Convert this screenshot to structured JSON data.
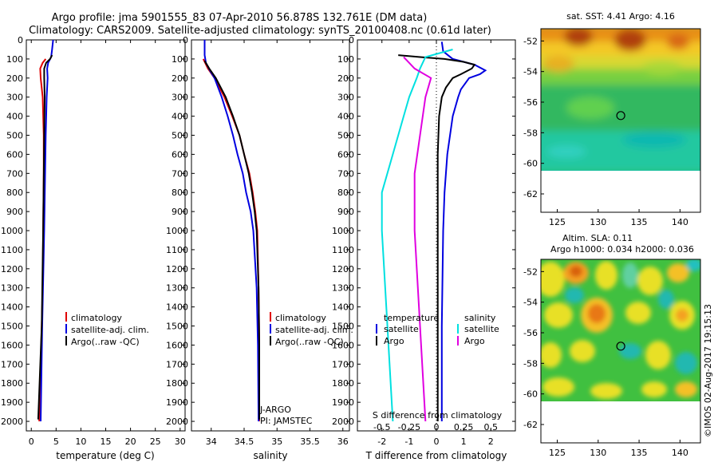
{
  "header": {
    "line1": "Argo profile: jma 5901555_83 07-Apr-2010 56.878S 132.761E (DM data)",
    "line2": "Climatology: CARS2009. Satellite-adjusted climatology: synTS_20100408.nc (0.61d later)"
  },
  "colors": {
    "climatology": "#e00000",
    "satellite": "#0000e0",
    "argo": "#000000",
    "salinity_sat": "#00e0e0",
    "salinity_argo": "#e000e0"
  },
  "chart_data": [
    {
      "type": "line",
      "id": "temperature",
      "title": "",
      "xlabel": "temperature (deg C)",
      "ylabel": "",
      "xlim": [
        -1,
        31
      ],
      "ylim": [
        2050,
        0
      ],
      "xticks": [
        0,
        5,
        10,
        15,
        20,
        25,
        30
      ],
      "yticks": [
        0,
        100,
        200,
        300,
        400,
        500,
        600,
        700,
        800,
        900,
        1000,
        1100,
        1200,
        1300,
        1400,
        1500,
        1600,
        1700,
        1800,
        1900,
        2000
      ],
      "legend": [
        "climatology",
        "satellite-adj. clim.",
        "Argo(..raw -QC)"
      ],
      "series": [
        {
          "name": "climatology",
          "depth": [
            100,
            120,
            150,
            200,
            300,
            500,
            700,
            1000,
            1300,
            1600,
            1900,
            2000
          ],
          "values": [
            2.9,
            2.3,
            1.8,
            1.9,
            2.3,
            2.5,
            2.5,
            2.4,
            2.3,
            2.0,
            1.7,
            1.6
          ]
        },
        {
          "name": "satellite-adj. clim.",
          "depth": [
            0,
            50,
            90,
            120,
            150,
            200,
            300,
            500,
            1000,
            1500,
            2000
          ],
          "values": [
            4.4,
            4.2,
            4.0,
            3.4,
            3.2,
            3.3,
            3.1,
            2.9,
            2.6,
            2.2,
            1.9
          ]
        },
        {
          "name": "Argo(..raw -QC)",
          "depth": [
            80,
            100,
            120,
            150,
            200,
            300,
            500,
            1000,
            1500,
            1990
          ],
          "values": [
            4.2,
            3.8,
            3.0,
            2.6,
            2.6,
            2.7,
            2.6,
            2.4,
            2.1,
            1.4
          ]
        }
      ]
    },
    {
      "type": "line",
      "id": "salinity",
      "title": "",
      "xlabel": "salinity",
      "ylabel": "",
      "xlim": [
        33.7,
        36.1
      ],
      "ylim": [
        2050,
        0
      ],
      "xticks": [
        34,
        34.5,
        35,
        35.5,
        36
      ],
      "yticks": [
        0,
        100,
        200,
        300,
        400,
        500,
        600,
        700,
        800,
        900,
        1000,
        1100,
        1200,
        1300,
        1400,
        1500,
        1600,
        1700,
        1800,
        1900,
        2000
      ],
      "legend": [
        "climatology",
        "satellite-adj. clim.",
        "Argo(..raw -QC)"
      ],
      "annotation": [
        "J-ARGO",
        "PI: JAMSTEC"
      ],
      "series": [
        {
          "name": "climatology",
          "depth": [
            100,
            150,
            200,
            300,
            400,
            500,
            600,
            700,
            800,
            900,
            1000,
            1300,
            1600,
            2000
          ],
          "values": [
            33.88,
            33.95,
            34.05,
            34.2,
            34.32,
            34.43,
            34.5,
            34.58,
            34.63,
            34.67,
            34.7,
            34.72,
            34.73,
            34.73
          ]
        },
        {
          "name": "satellite-adj. clim.",
          "depth": [
            0,
            80,
            120,
            160,
            200,
            300,
            400,
            500,
            600,
            700,
            800,
            900,
            1000,
            1300,
            1600,
            2000
          ],
          "values": [
            33.9,
            33.9,
            33.92,
            33.98,
            34.05,
            34.16,
            34.25,
            34.33,
            34.4,
            34.48,
            34.53,
            34.6,
            34.64,
            34.69,
            34.71,
            34.72
          ]
        },
        {
          "name": "Argo(..raw -QC)",
          "depth": [
            110,
            150,
            200,
            300,
            400,
            500,
            600,
            700,
            800,
            900,
            1000,
            1300,
            1600,
            1990
          ],
          "values": [
            33.9,
            33.97,
            34.07,
            34.22,
            34.33,
            34.43,
            34.5,
            34.57,
            34.62,
            34.66,
            34.69,
            34.72,
            34.73,
            34.73
          ]
        }
      ]
    },
    {
      "type": "line",
      "id": "difference",
      "title": "",
      "xlabel": "T difference from climatology",
      "xlabel_top": "S difference from climatology",
      "xlim": [
        -2.9,
        2.9
      ],
      "ylim": [
        2050,
        0
      ],
      "xticks_T": [
        -2,
        -1,
        0,
        1,
        2
      ],
      "xticks_S": [
        -0.5,
        -0.25,
        0,
        0.25,
        0.5
      ],
      "yticks": [
        0,
        100,
        200,
        300,
        400,
        500,
        600,
        700,
        800,
        900,
        1000,
        1100,
        1200,
        1300,
        1400,
        1500,
        1600,
        1700,
        1800,
        1900,
        2000
      ],
      "legend": {
        "temperature": [
          "satellite",
          "Argo"
        ],
        "salinity": [
          "satellite",
          "Argo"
        ],
        "headers": [
          "temperature",
          "salinity"
        ]
      },
      "series": [
        {
          "name": "temperature satellite",
          "depth": [
            10,
            60,
            100,
            130,
            160,
            180,
            200,
            260,
            300,
            400,
            500,
            600,
            800,
            1000,
            1500,
            2000
          ],
          "values": [
            0.2,
            0.25,
            0.6,
            1.4,
            1.8,
            1.6,
            1.2,
            0.9,
            0.8,
            0.6,
            0.5,
            0.4,
            0.3,
            0.25,
            0.2,
            0.2
          ]
        },
        {
          "name": "temperature Argo",
          "depth": [
            80,
            90,
            100,
            115,
            130,
            150,
            180,
            200,
            250,
            300,
            400,
            600,
            1000,
            1500,
            2000
          ],
          "values": [
            -1.4,
            -0.6,
            0.3,
            1.0,
            1.4,
            1.3,
            0.9,
            0.6,
            0.35,
            0.2,
            0.1,
            0.05,
            0.05,
            0.05,
            0.05
          ]
        },
        {
          "name": "salinity satellite",
          "depth": [
            50,
            90,
            150,
            200,
            300,
            400,
            600,
            800,
            1000,
            1500,
            2000
          ],
          "values": [
            0.15,
            -0.1,
            -0.15,
            -0.18,
            -0.25,
            -0.3,
            -0.4,
            -0.5,
            -0.5,
            -0.45,
            -0.4
          ]
        },
        {
          "name": "salinity Argo",
          "depth": [
            90,
            150,
            200,
            300,
            500,
            700,
            1000,
            1500,
            2000
          ],
          "values": [
            -0.3,
            -0.2,
            -0.05,
            -0.1,
            -0.15,
            -0.2,
            -0.2,
            -0.15,
            -0.1
          ]
        }
      ]
    },
    {
      "type": "heatmap",
      "id": "sst_map",
      "title": "sat. SST: 4.41  Argo: 4.16",
      "xticks": [
        125,
        130,
        135,
        140
      ],
      "yticks": [
        -52,
        -54,
        -56,
        -58,
        -60,
        -62
      ],
      "xlim": [
        123,
        142.5
      ],
      "ylim": [
        -63.2,
        -51.2
      ],
      "marker": [
        132.761,
        -56.878
      ]
    },
    {
      "type": "heatmap",
      "id": "sla_map",
      "title": "Altim. SLA: 0.11",
      "subtitle": "Argo h1000: 0.034  h2000: 0.036",
      "xticks": [
        125,
        130,
        135,
        140
      ],
      "yticks": [
        -52,
        -54,
        -56,
        -58,
        -60,
        -62
      ],
      "xlim": [
        123,
        142.5
      ],
      "ylim": [
        -63.2,
        -51.2
      ],
      "marker": [
        132.761,
        -56.878
      ]
    }
  ],
  "credit": "©IMOS 02-Aug-2017 19:15:13"
}
